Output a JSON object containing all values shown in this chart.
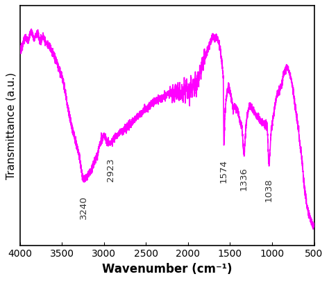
{
  "title": "",
  "xlabel": "Wavenumber (cm⁻¹)",
  "ylabel": "Transmittance (a.u.)",
  "xlim": [
    4000,
    500
  ],
  "line_color": "#FF00FF",
  "line_width": 1.2,
  "background_color": "#ffffff",
  "annotations": [
    {
      "x": 3240,
      "label": "3240"
    },
    {
      "x": 2923,
      "label": "2923"
    },
    {
      "x": 1574,
      "label": "1574"
    },
    {
      "x": 1336,
      "label": "1336"
    },
    {
      "x": 1038,
      "label": "1038"
    }
  ],
  "xticks": [
    4000,
    3500,
    3000,
    2500,
    2000,
    1500,
    1000,
    500
  ],
  "xlabel_fontsize": 12,
  "ylabel_fontsize": 11,
  "tick_fontsize": 10,
  "annotation_fontsize": 9.5
}
